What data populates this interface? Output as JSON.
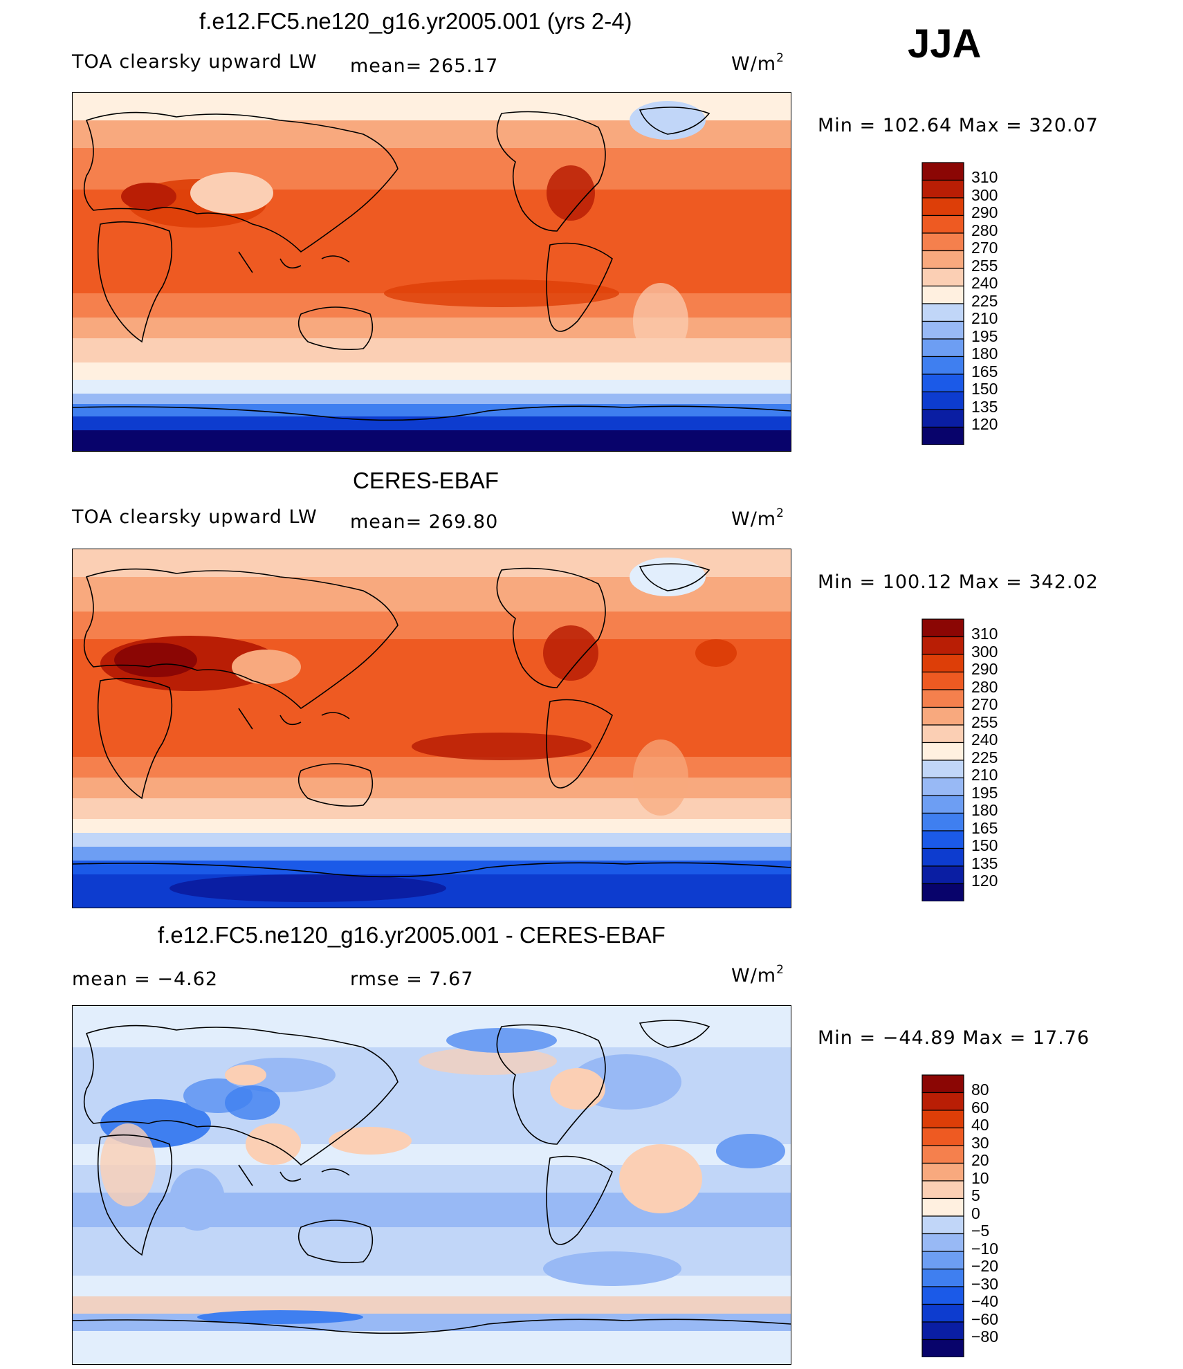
{
  "season": "JJA",
  "palette_abs": [
    "#08036b",
    "#0a1ea3",
    "#0d3ccf",
    "#1b5ae8",
    "#3f7ff0",
    "#6d9ef3",
    "#98b9f5",
    "#c1d6f8",
    "#e2eefc",
    "#fff0e0",
    "#fbcfb4",
    "#f8a97e",
    "#f5804d",
    "#ee5a22",
    "#dd3e08",
    "#b91e05",
    "#8b0604"
  ],
  "palette_diff": [
    "#08036b",
    "#0a1ea3",
    "#0d3ccf",
    "#1b5ae8",
    "#3f7ff0",
    "#6d9ef3",
    "#98b9f5",
    "#c1d6f8",
    "#e2eefc",
    "#fff0e0",
    "#fbcfb4",
    "#f8a97e",
    "#f5804d",
    "#ee5a22",
    "#dd3e08",
    "#b91e05",
    "#8b0604"
  ],
  "panels": [
    {
      "title": "f.e12.FC5.ne120_g16.yr2005.001 (yrs 2-4)",
      "left_label": "TOA clearsky upward LW",
      "mid_label": "mean= 265.17",
      "units_base": "W/m",
      "units_exp": "2",
      "minmax": "Min  =  102.64  Max  =  320.07",
      "colorbar_ticks": [
        "310",
        "300",
        "290",
        "280",
        "270",
        "255",
        "240",
        "225",
        "210",
        "195",
        "180",
        "165",
        "150",
        "135",
        "120"
      ]
    },
    {
      "title": "CERES-EBAF",
      "left_label": "TOA clearsky upward LW",
      "mid_label": "mean= 269.80",
      "units_base": "W/m",
      "units_exp": "2",
      "minmax": "Min  =  100.12  Max  =  342.02",
      "colorbar_ticks": [
        "310",
        "300",
        "290",
        "280",
        "270",
        "255",
        "240",
        "225",
        "210",
        "195",
        "180",
        "165",
        "150",
        "135",
        "120"
      ]
    },
    {
      "title": "f.e12.FC5.ne120_g16.yr2005.001 - CERES-EBAF",
      "left_label": "mean  =    −4.62",
      "mid_label": "rmse  =     7.67",
      "units_base": "W/m",
      "units_exp": "2",
      "minmax": "Min  =  −44.89  Max  =    17.76",
      "colorbar_ticks": [
        "80",
        "60",
        "40",
        "30",
        "20",
        "10",
        "5",
        "0",
        "−5",
        "−10",
        "−20",
        "−30",
        "−40",
        "−60",
        "−80"
      ]
    }
  ]
}
